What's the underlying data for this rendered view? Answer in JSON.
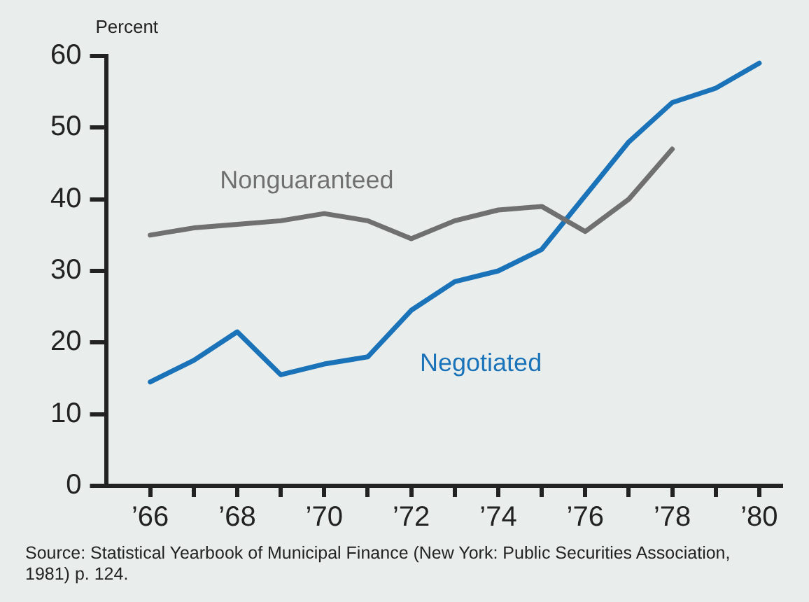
{
  "chart_data": {
    "type": "line",
    "ylabel": "Percent",
    "x": [
      1966,
      1967,
      1968,
      1969,
      1970,
      1971,
      1972,
      1973,
      1974,
      1975,
      1976,
      1977,
      1978,
      1979,
      1980
    ],
    "series": [
      {
        "name": "Nonguaranteed",
        "color": "#707070",
        "values": [
          35,
          36,
          36.5,
          37,
          38,
          37,
          34.5,
          37,
          38.5,
          39,
          35.5,
          40,
          47,
          null,
          null
        ]
      },
      {
        "name": "Negotiated",
        "color": "#1a72b8",
        "values": [
          14.5,
          17.5,
          21.5,
          15.5,
          17,
          18,
          24.5,
          28.5,
          30,
          33,
          40.5,
          48,
          53.5,
          55.5,
          59
        ]
      }
    ],
    "xlim": [
      1965,
      1980.5
    ],
    "xticks": [
      {
        "value": 1966,
        "label": "’66"
      },
      {
        "value": 1967,
        "label": null
      },
      {
        "value": 1968,
        "label": "’68"
      },
      {
        "value": 1969,
        "label": null
      },
      {
        "value": 1970,
        "label": "’70"
      },
      {
        "value": 1971,
        "label": null
      },
      {
        "value": 1972,
        "label": "’72"
      },
      {
        "value": 1973,
        "label": null
      },
      {
        "value": 1974,
        "label": "’74"
      },
      {
        "value": 1975,
        "label": null
      },
      {
        "value": 1976,
        "label": "’76"
      },
      {
        "value": 1977,
        "label": null
      },
      {
        "value": 1978,
        "label": "’78"
      },
      {
        "value": 1979,
        "label": null
      },
      {
        "value": 1980,
        "label": "’80"
      }
    ],
    "ylim": [
      0,
      60
    ],
    "yticks": [
      0,
      10,
      20,
      30,
      40,
      50,
      60
    ],
    "grid": false,
    "legend": false,
    "marker": "none",
    "line_style": "solid",
    "annotations": [
      "Source: Statistical Yearbook of Municipal Finance (New York: Public Securities Association, 1981) p. 124."
    ]
  }
}
